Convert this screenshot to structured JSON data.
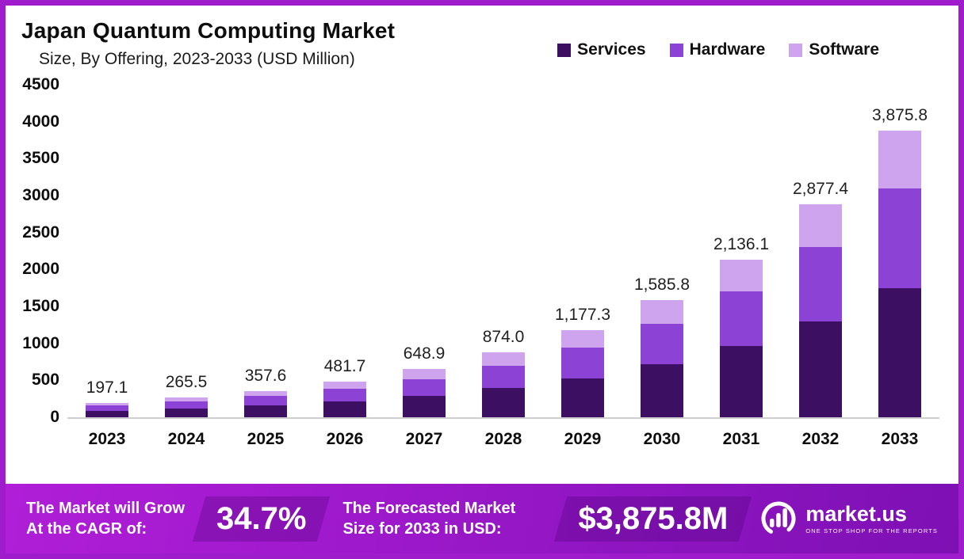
{
  "header": {
    "title": "Japan Quantum Computing Market",
    "subtitle": "Size, By Offering, 2023-2033 (USD Million)"
  },
  "legend": [
    {
      "label": "Services",
      "color": "#3c0f63"
    },
    {
      "label": "Hardware",
      "color": "#8c42d4"
    },
    {
      "label": "Software",
      "color": "#cda4ed"
    }
  ],
  "chart_data": {
    "type": "bar",
    "stacked": true,
    "title": "Japan Quantum Computing Market Size, By Offering, 2023-2033 (USD Million)",
    "categories": [
      "2023",
      "2024",
      "2025",
      "2026",
      "2027",
      "2028",
      "2029",
      "2030",
      "2031",
      "2032",
      "2033"
    ],
    "series": [
      {
        "name": "Services",
        "color": "#3c0f63",
        "values": [
          89.0,
          119.5,
          161.0,
          217.0,
          292.0,
          393.0,
          530.0,
          714.0,
          961.0,
          1295.0,
          1744.0
        ]
      },
      {
        "name": "Hardware",
        "color": "#8c42d4",
        "values": [
          69.0,
          93.0,
          125.0,
          168.0,
          227.0,
          306.0,
          412.0,
          555.0,
          748.0,
          1007.0,
          1356.0
        ]
      },
      {
        "name": "Software",
        "color": "#cda4ed",
        "values": [
          39.1,
          53.0,
          71.6,
          96.7,
          129.9,
          175.0,
          235.3,
          316.8,
          427.1,
          575.4,
          775.8
        ]
      }
    ],
    "totals": [
      197.1,
      265.5,
      357.6,
      481.7,
      648.9,
      874.0,
      1177.3,
      1585.8,
      2136.1,
      2877.4,
      3875.8
    ],
    "total_labels": [
      "197.1",
      "265.5",
      "357.6",
      "481.7",
      "648.9",
      "874.0",
      "1,177.3",
      "1,585.8",
      "2,136.1",
      "2,877.4",
      "3,875.8"
    ],
    "xlabel": "",
    "ylabel": "",
    "ylim": [
      0,
      4500
    ],
    "yticks": [
      0,
      500,
      1000,
      1500,
      2000,
      2500,
      3000,
      3500,
      4000,
      4500
    ],
    "grid": false,
    "legend_position": "top-right"
  },
  "banner": {
    "cagr_label_line1": "The Market will Grow",
    "cagr_label_line2": "At the CAGR of:",
    "cagr_value": "34.7%",
    "forecast_label_line1": "The Forecasted Market",
    "forecast_label_line2": "Size for 2033 in USD:",
    "forecast_value": "$3,875.8M",
    "logo_text": "market.us",
    "logo_tagline": "ONE STOP SHOP FOR THE REPORTS"
  }
}
